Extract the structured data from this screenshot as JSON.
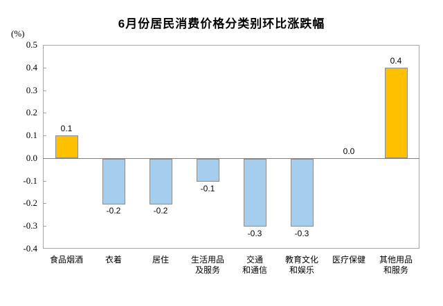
{
  "chart_data": {
    "type": "bar",
    "title": "6月份居民消费价格分类别环比涨跌幅",
    "unit_label": "(%)",
    "categories": [
      "食品烟酒",
      "衣着",
      "居住",
      "生活用品\n及服务",
      "交通\n和通信",
      "教育文化\n和娱乐",
      "医疗保健",
      "其他用品\n和服务"
    ],
    "values": [
      0.1,
      -0.2,
      -0.2,
      -0.1,
      -0.3,
      -0.3,
      0.0,
      0.4
    ],
    "data_labels": [
      "0.1",
      "-0.2",
      "-0.2",
      "-0.1",
      "-0.3",
      "-0.3",
      "0.0",
      "0.4"
    ],
    "xlabel": "",
    "ylabel": "(%)",
    "ylim": [
      -0.4,
      0.5
    ],
    "ytick_step": 0.1,
    "ytick_labels": [
      "0.5",
      "0.4",
      "0.3",
      "0.2",
      "0.1",
      "0.0",
      "-0.1",
      "-0.2",
      "-0.3",
      "-0.4"
    ],
    "grid": false,
    "legend": false,
    "colors": {
      "positive_bar": "#FFC000",
      "negative_bar": "#A5CDEE",
      "bar_border": "#8C8C8C",
      "plot_border": "#A6A6A6",
      "zero_line": "#808080",
      "text": "#000000"
    }
  }
}
